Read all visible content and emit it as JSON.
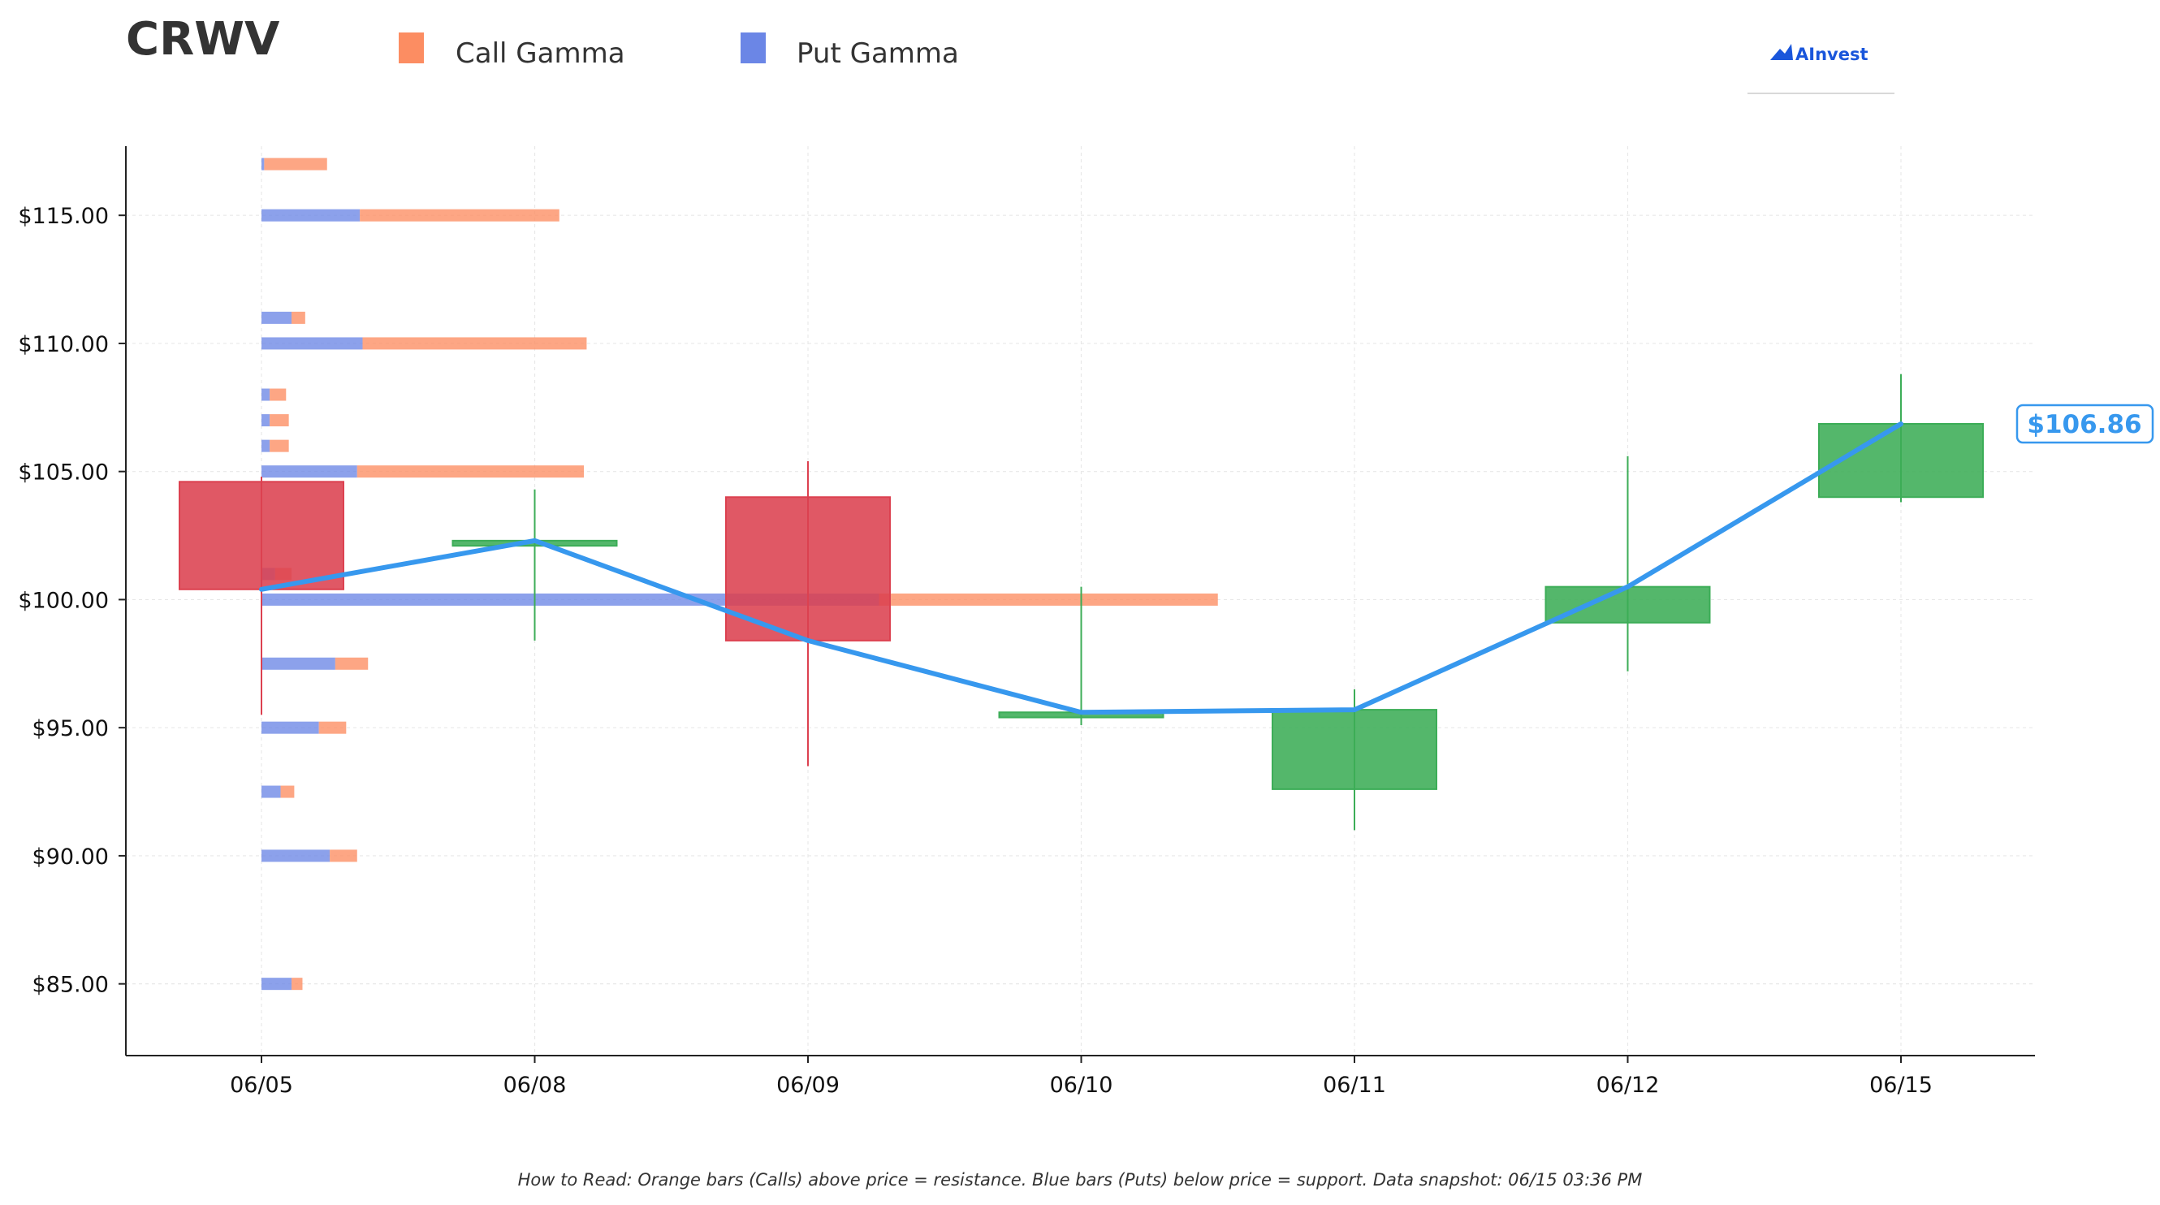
{
  "ticker": "CRWV",
  "legend": {
    "call_label": "Call Gamma",
    "put_label": "Put Gamma",
    "placement": "top"
  },
  "brand": {
    "name": "AInvest",
    "color": "#1a56db"
  },
  "footer": "How to Read: Orange bars (Calls) above price = resistance. Blue bars (Puts) below price = support. Data snapshot: 06/15 03:36 PM",
  "colors": {
    "call": "#fc8d62",
    "put": "#6b86e6",
    "up": "#3cad57",
    "down": "#dc4150",
    "line": "#3798ee",
    "axis": "#222222"
  },
  "chart_data": {
    "type": "candlestick",
    "title": "CRWV",
    "xlabel": "",
    "ylabel": "",
    "ylim": [
      82.2,
      117.7
    ],
    "yticks": [
      85,
      90,
      95,
      100,
      105,
      110,
      115
    ],
    "ytick_labels": [
      "$85.00",
      "$90.00",
      "$95.00",
      "$100.00",
      "$105.00",
      "$110.00",
      "$115.00"
    ],
    "categories": [
      "06/05",
      "06/08",
      "06/09",
      "06/10",
      "06/11",
      "06/12",
      "06/15"
    ],
    "ohlc": [
      {
        "date": "06/05",
        "open": 104.6,
        "high": 104.8,
        "low": 95.5,
        "close": 100.4
      },
      {
        "date": "06/08",
        "open": 102.1,
        "high": 104.3,
        "low": 98.4,
        "close": 102.3
      },
      {
        "date": "06/09",
        "open": 104.0,
        "high": 105.4,
        "low": 93.5,
        "close": 98.4
      },
      {
        "date": "06/10",
        "open": 95.4,
        "high": 100.5,
        "low": 95.1,
        "close": 95.6
      },
      {
        "date": "06/11",
        "open": 92.6,
        "high": 96.5,
        "low": 91.0,
        "close": 95.7
      },
      {
        "date": "06/12",
        "open": 99.1,
        "high": 105.6,
        "low": 97.2,
        "close": 100.5
      },
      {
        "date": "06/15",
        "open": 104.0,
        "high": 108.8,
        "low": 103.8,
        "close": 106.86
      }
    ],
    "close_line": [
      100.4,
      102.3,
      98.4,
      95.6,
      95.7,
      100.5,
      106.86
    ],
    "last_price_label": "$106.86",
    "gamma": {
      "strike_units": "price",
      "bar_length_units": "x-axis days from first date",
      "levels": [
        {
          "strike": 117,
          "put": 0.01,
          "call": 0.23
        },
        {
          "strike": 115,
          "put": 0.36,
          "call": 0.73
        },
        {
          "strike": 111,
          "put": 0.11,
          "call": 0.05
        },
        {
          "strike": 110,
          "put": 0.37,
          "call": 0.82
        },
        {
          "strike": 108,
          "put": 0.03,
          "call": 0.06
        },
        {
          "strike": 107,
          "put": 0.03,
          "call": 0.07
        },
        {
          "strike": 106,
          "put": 0.03,
          "call": 0.07
        },
        {
          "strike": 105,
          "put": 0.35,
          "call": 0.83
        },
        {
          "strike": 101,
          "put": 0.05,
          "call": 0.06
        },
        {
          "strike": 100,
          "put": 2.26,
          "call": 1.24
        },
        {
          "strike": 97.5,
          "put": 0.27,
          "call": 0.12
        },
        {
          "strike": 95,
          "put": 0.21,
          "call": 0.1
        },
        {
          "strike": 92.5,
          "put": 0.07,
          "call": 0.05
        },
        {
          "strike": 90,
          "put": 0.25,
          "call": 0.1
        },
        {
          "strike": 85,
          "put": 0.11,
          "call": 0.04
        }
      ]
    },
    "grid": true
  }
}
